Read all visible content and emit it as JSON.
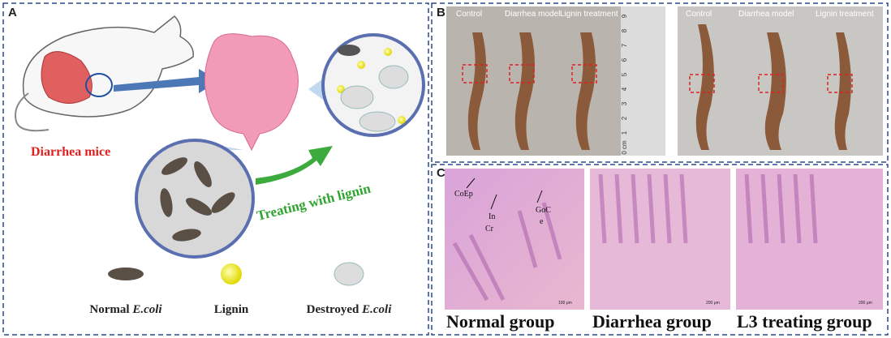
{
  "panels": {
    "a": {
      "label": "A",
      "mouse_label": "Diarrhea mice",
      "treatment_label": "Treating with lignin",
      "legend": [
        {
          "prefix": "Normal ",
          "italic": "E.coli"
        },
        {
          "prefix": "Lignin"
        },
        {
          "prefix": "Destroyed ",
          "italic": "E.coli"
        }
      ]
    },
    "b": {
      "label": "B",
      "photo_1_columns": [
        "Control",
        "Diarrhea model",
        "Lignin treatment"
      ],
      "photo_2_columns": [
        "Control",
        "Diarrhea model",
        "Lignin treatment"
      ],
      "ruler": [
        "0 cm",
        "1",
        "2",
        "3",
        "4",
        "5",
        "6",
        "7",
        "8",
        "9"
      ]
    },
    "c": {
      "label": "C",
      "annotations": [
        "CoEp",
        "In",
        "Cr",
        "GoC",
        "e"
      ],
      "scale_bars": [
        "100 μm",
        "200 μm",
        "200 μm"
      ],
      "captions": [
        "Normal group",
        "Diarrhea group",
        "L3 treating group"
      ]
    }
  }
}
